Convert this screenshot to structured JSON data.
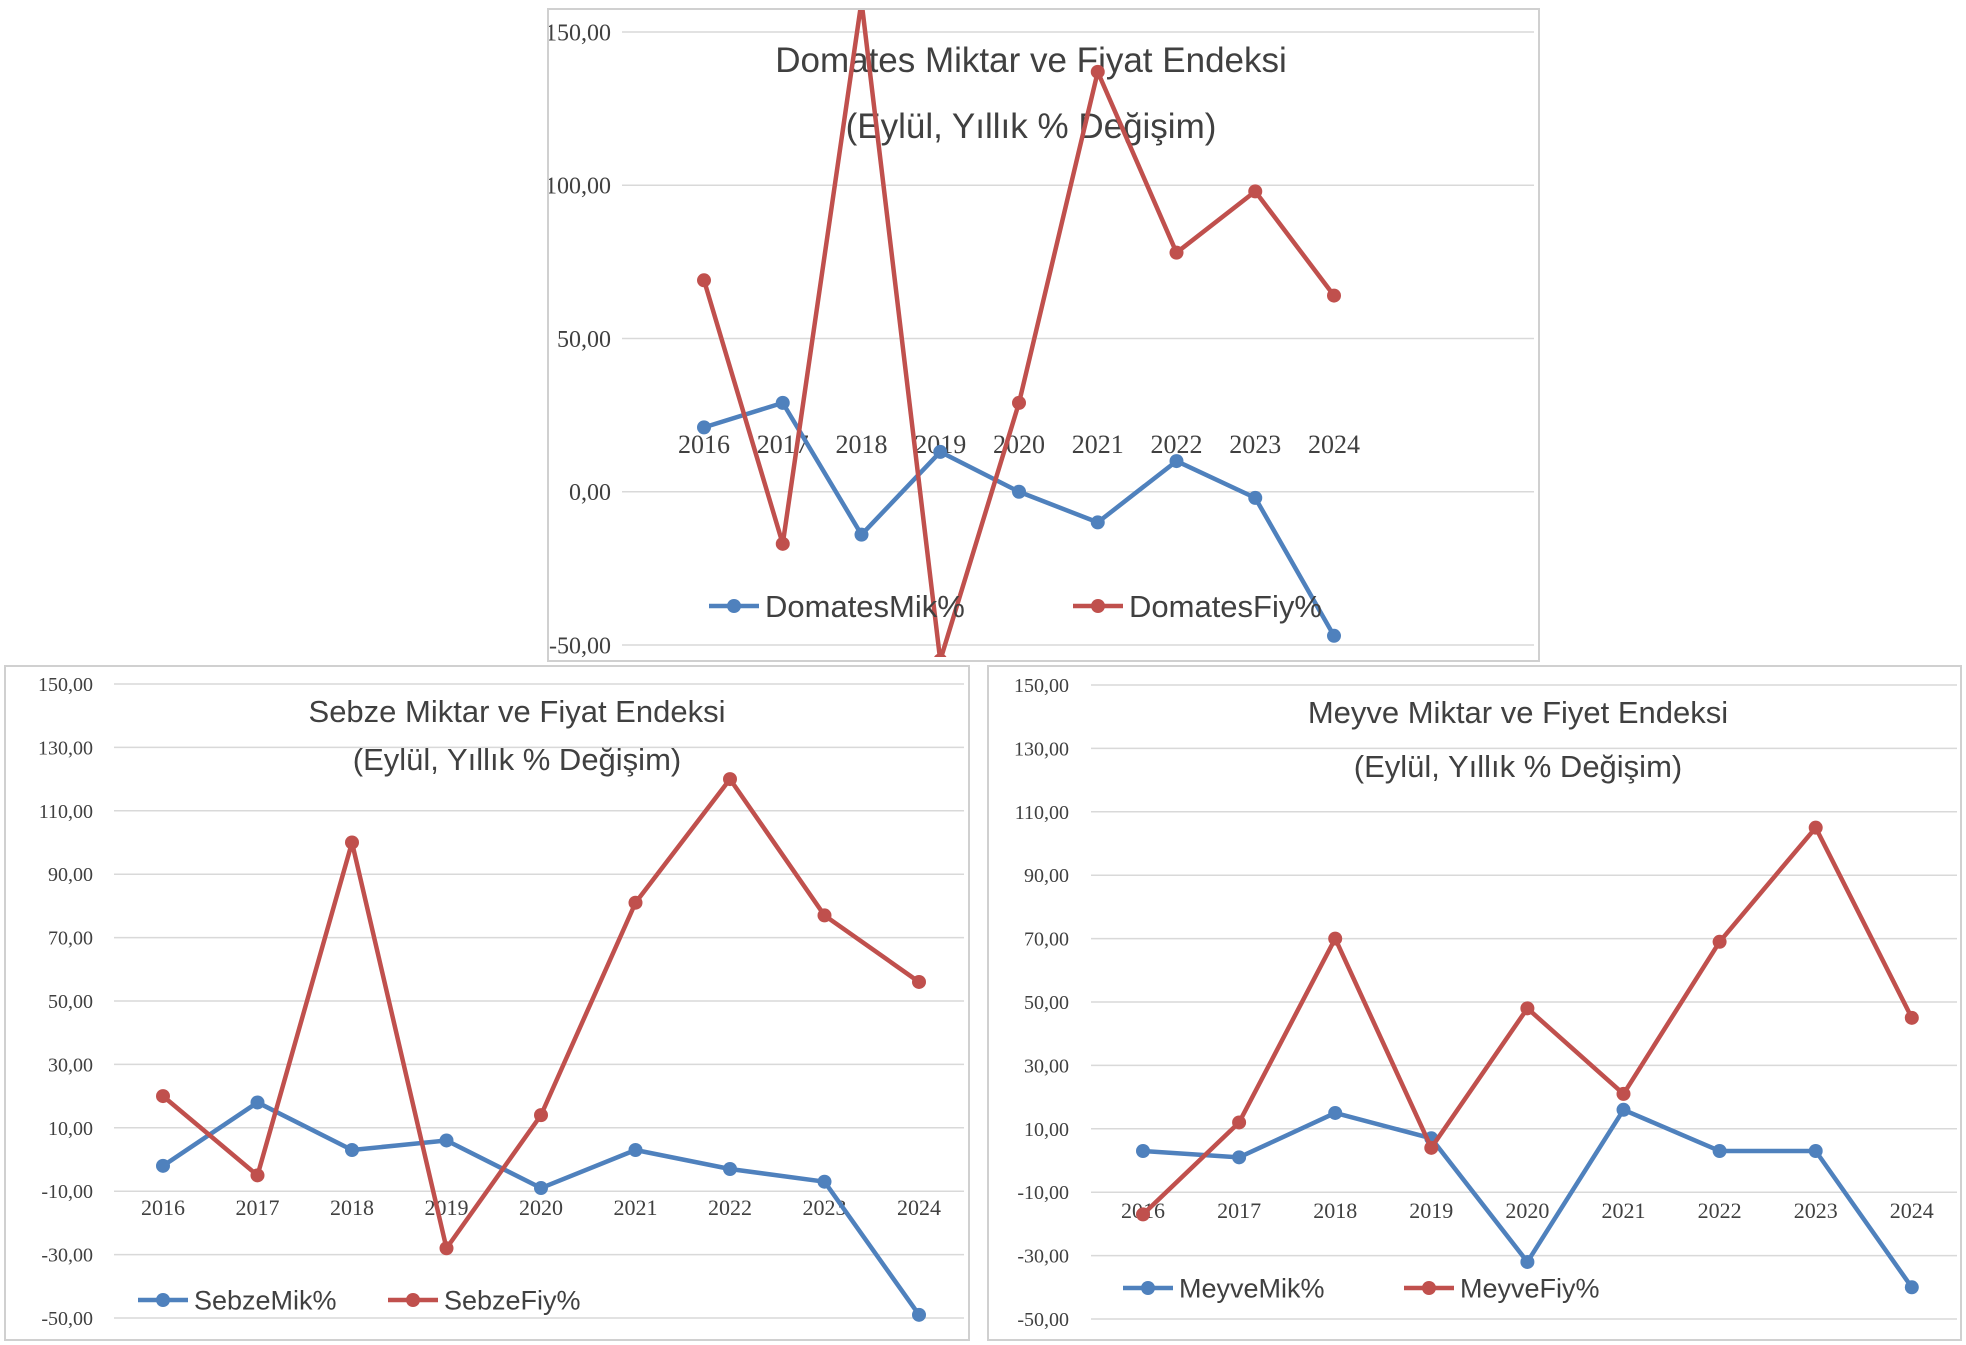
{
  "chart_data": [
    {
      "type": "line",
      "title": "Domates Miktar ve Fiyat Endeksi",
      "subtitle": "(Eylül, Yıllık % Değişim)",
      "categories": [
        "2016",
        "2017",
        "2018",
        "2019",
        "2020",
        "2021",
        "2022",
        "2023",
        "2024"
      ],
      "y_ticks": [
        "150,00",
        "100,00",
        "50,00",
        "0,00",
        "-50,00"
      ],
      "ylim": [
        -50,
        150
      ],
      "grid": true,
      "legend_position": "bottom-left",
      "series": [
        {
          "name": "DomatesMik%",
          "color": "#4f81bd",
          "values": [
            21,
            29,
            -14,
            13,
            0,
            -10,
            10,
            -2,
            -47
          ]
        },
        {
          "name": "DomatesFiy%",
          "color": "#c0504d",
          "values": [
            69,
            -17,
            160,
            -55,
            29,
            137,
            78,
            98,
            64
          ]
        }
      ]
    },
    {
      "type": "line",
      "title": "Sebze Miktar ve Fiyat Endeksi",
      "subtitle": "(Eylül, Yıllık % Değişim)",
      "categories": [
        "2016",
        "2017",
        "2018",
        "2019",
        "2020",
        "2021",
        "2022",
        "2023",
        "2024"
      ],
      "y_ticks": [
        "150,00",
        "130,00",
        "110,00",
        "90,00",
        "70,00",
        "50,00",
        "30,00",
        "10,00",
        "-10,00",
        "-30,00",
        "-50,00"
      ],
      "ylim": [
        -50,
        150
      ],
      "grid": true,
      "legend_position": "bottom-left",
      "series": [
        {
          "name": "SebzeMik%",
          "color": "#4f81bd",
          "values": [
            -2,
            18,
            3,
            6,
            -9,
            3,
            -3,
            -7,
            -49
          ]
        },
        {
          "name": "SebzeFiy%",
          "color": "#c0504d",
          "values": [
            20,
            -5,
            100,
            -28,
            14,
            81,
            120,
            77,
            56
          ]
        }
      ]
    },
    {
      "type": "line",
      "title": "Meyve Miktar ve Fiyet Endeksi",
      "subtitle": "(Eylül, Yıllık % Değişim)",
      "categories": [
        "2016",
        "2017",
        "2018",
        "2019",
        "2020",
        "2021",
        "2022",
        "2023",
        "2024"
      ],
      "y_ticks": [
        "150,00",
        "130,00",
        "110,00",
        "90,00",
        "70,00",
        "50,00",
        "30,00",
        "10,00",
        "-10,00",
        "-30,00",
        "-50,00"
      ],
      "ylim": [
        -50,
        150
      ],
      "grid": true,
      "legend_position": "bottom-left",
      "series": [
        {
          "name": "MeyveMik%",
          "color": "#4f81bd",
          "values": [
            3,
            1,
            15,
            7,
            -32,
            16,
            3,
            3,
            -40
          ]
        },
        {
          "name": "MeyveFiy%",
          "color": "#c0504d",
          "values": [
            -17,
            12,
            70,
            4,
            48,
            21,
            69,
            105,
            45
          ]
        }
      ]
    }
  ]
}
